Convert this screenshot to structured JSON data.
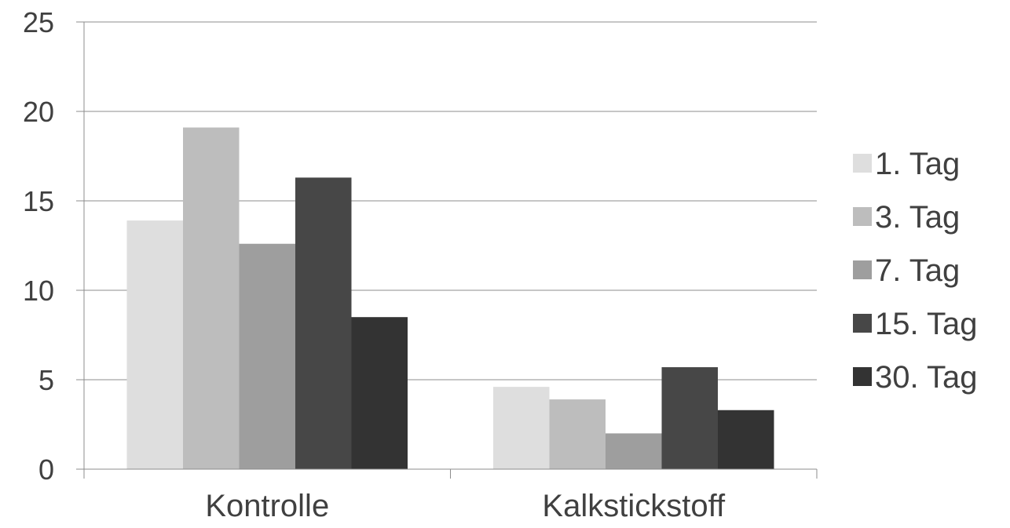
{
  "chart_data": {
    "type": "bar",
    "categories": [
      "Kontrolle",
      "Kalkstickstoff"
    ],
    "series": [
      {
        "name": "1. Tag",
        "values": [
          13.9,
          4.6
        ],
        "color": "#dedede"
      },
      {
        "name": "3. Tag",
        "values": [
          19.1,
          3.9
        ],
        "color": "#bdbdbd"
      },
      {
        "name": "7. Tag",
        "values": [
          12.6,
          2.0
        ],
        "color": "#9e9e9e"
      },
      {
        "name": "15. Tag",
        "values": [
          16.3,
          5.7
        ],
        "color": "#474747"
      },
      {
        "name": "30. Tag",
        "values": [
          8.5,
          3.3
        ],
        "color": "#333333"
      }
    ],
    "yticks": [
      "0",
      "5",
      "10",
      "15",
      "20",
      "25"
    ],
    "ylim": [
      0,
      25
    ],
    "title": "",
    "xlabel": "",
    "ylabel": "",
    "grid": "horizontal",
    "legend": "right"
  }
}
